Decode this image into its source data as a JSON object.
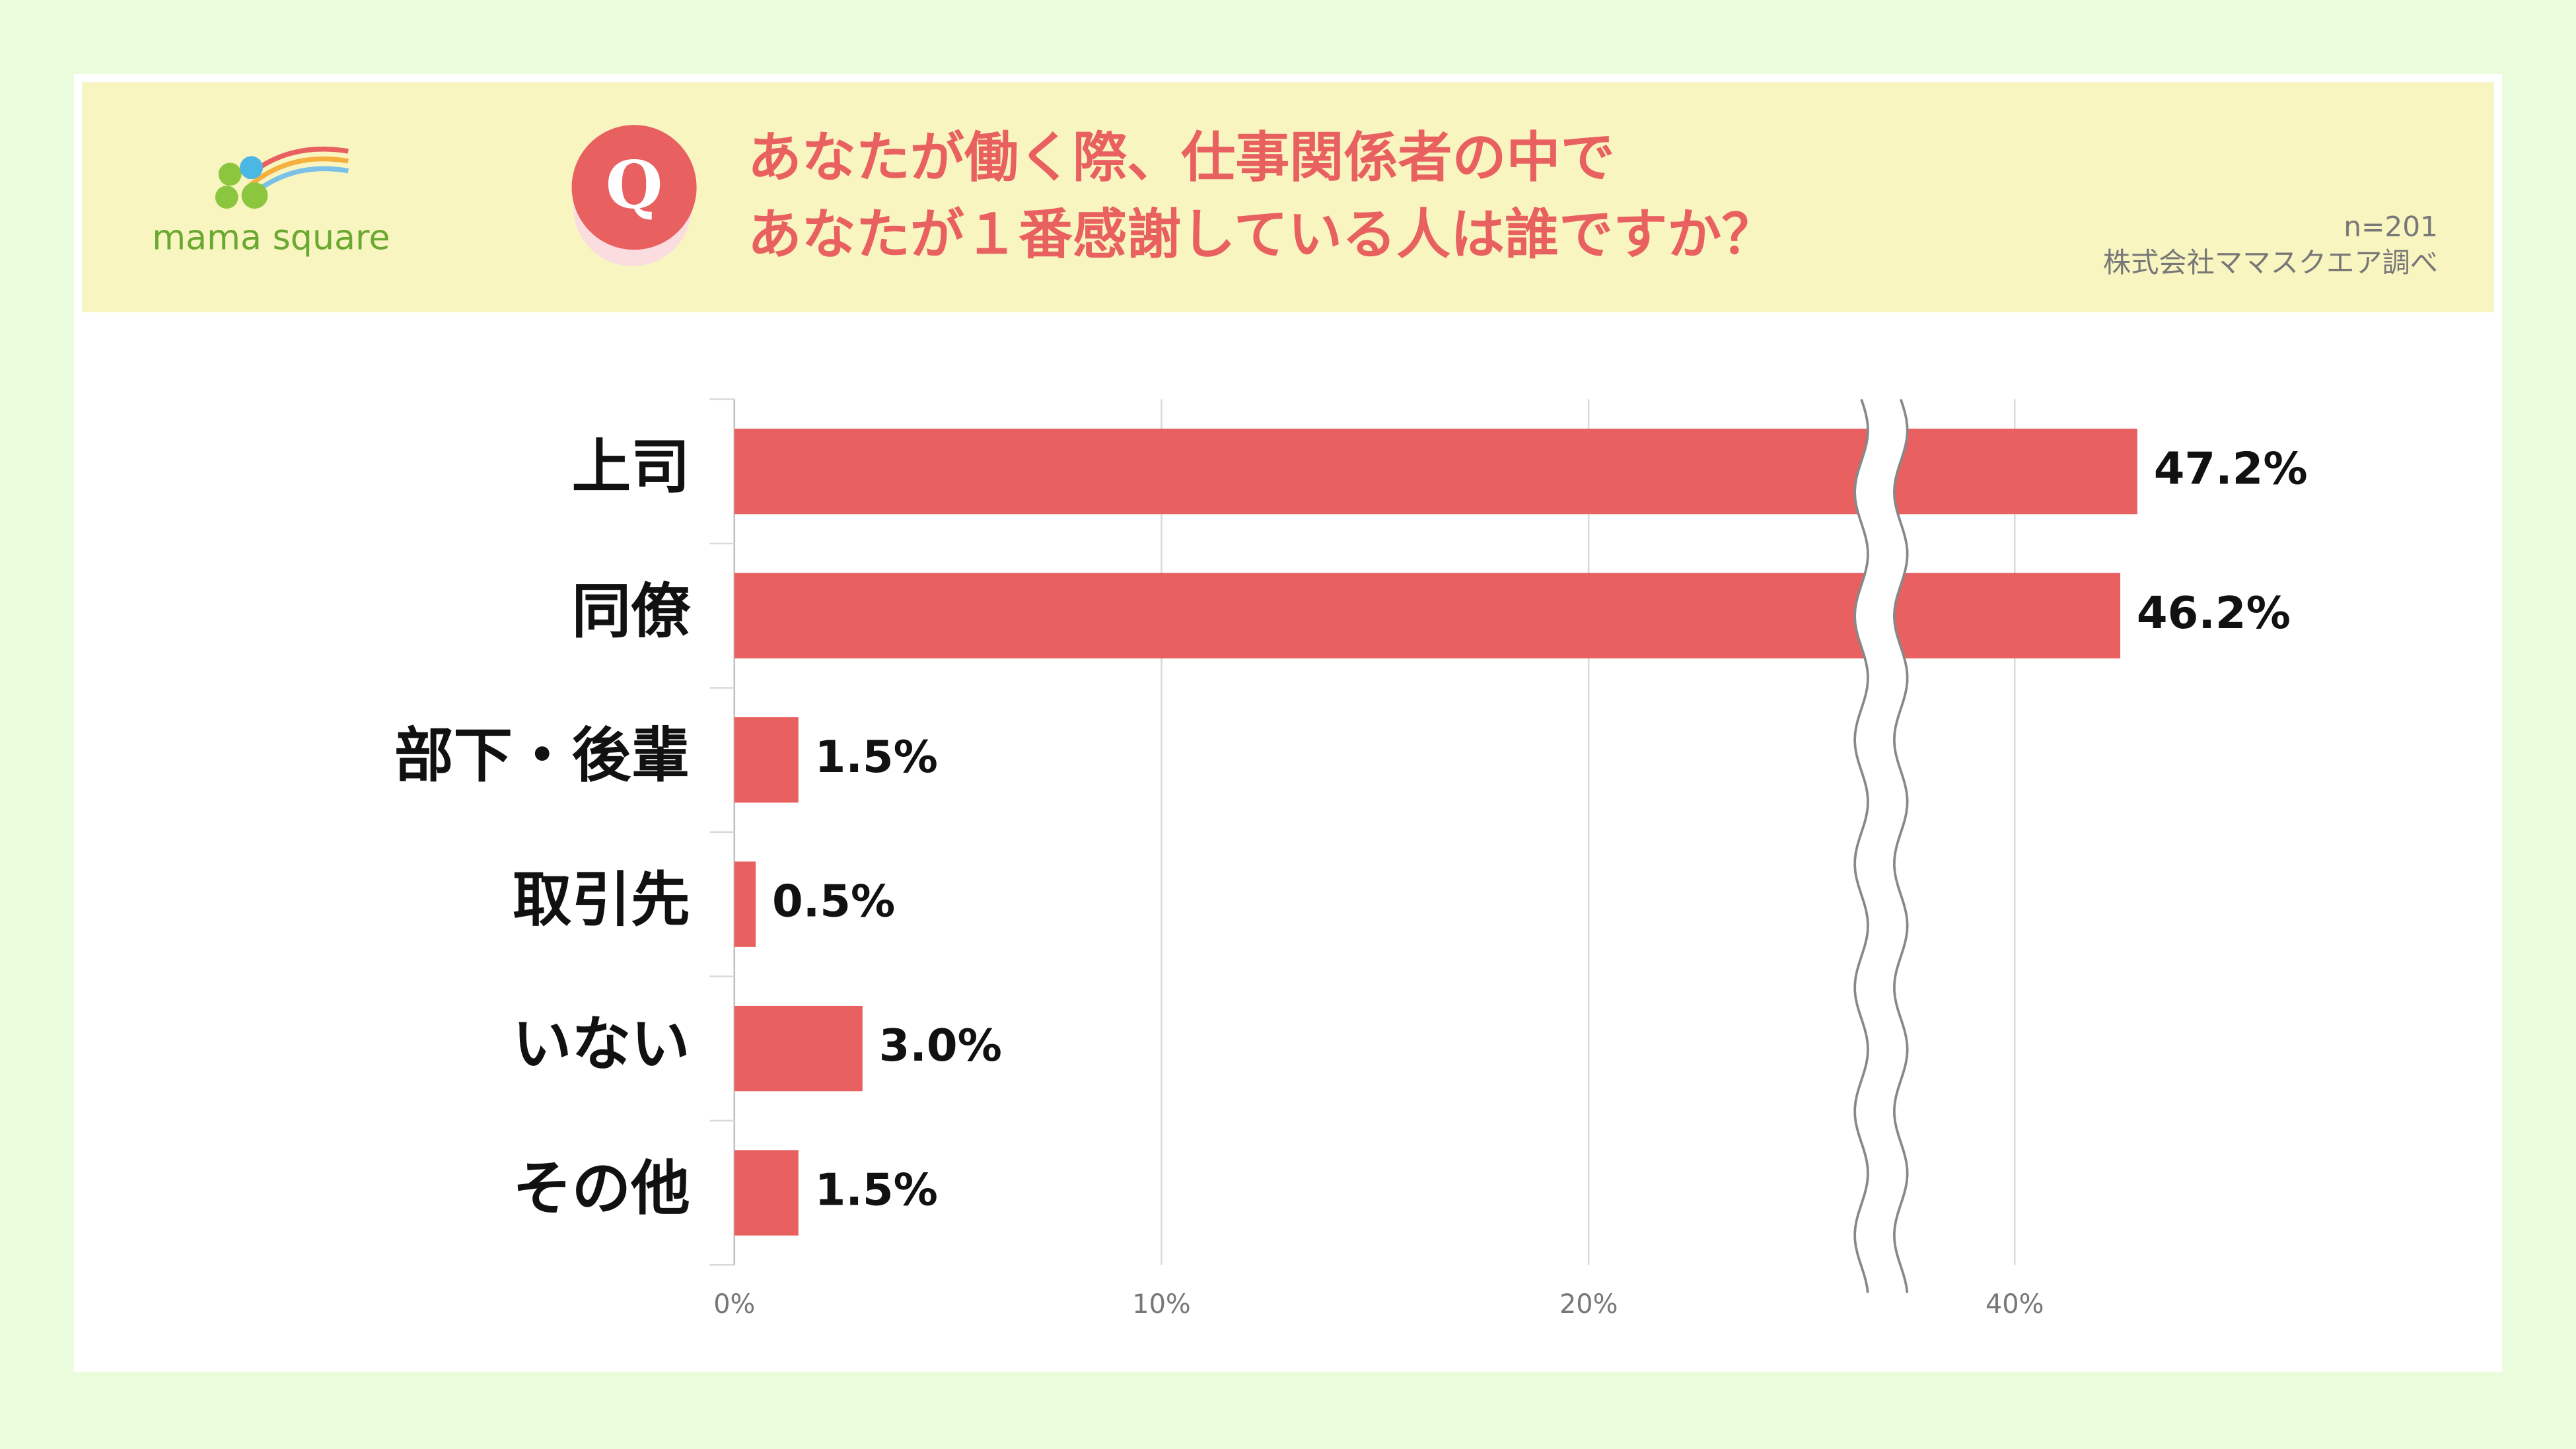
{
  "logo": "mama square",
  "chart_data": {
    "type": "bar",
    "orientation": "horizontal",
    "title": [
      "あなたが働く際、仕事関係者の中で",
      "あなたが１番感謝している人は誰ですか？"
    ],
    "badge": "Q",
    "sample_size": "n=201",
    "source": "株式会社ママスクエア調べ",
    "categories": [
      "上司",
      "同僚",
      "部下・後輩",
      "取引先",
      "いない",
      "その他"
    ],
    "values": [
      47.2,
      46.2,
      1.5,
      0.5,
      3.0,
      1.5
    ],
    "value_labels": [
      "47.2%",
      "46.2%",
      "1.5%",
      "0.5%",
      "3.0%",
      "1.5%"
    ],
    "color": "#e96060",
    "xlim": [
      0,
      50
    ],
    "axis_break": [
      27,
      33.6
    ],
    "xticks": [
      {
        "value": 0,
        "label": "0%"
      },
      {
        "value": 10,
        "label": "10%"
      },
      {
        "value": 20,
        "label": "20%"
      },
      {
        "value": 40,
        "label": "40%"
      }
    ],
    "grid": true
  }
}
